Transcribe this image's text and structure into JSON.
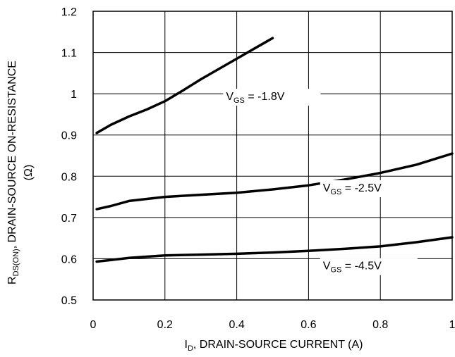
{
  "chart_data": {
    "type": "line",
    "title": "",
    "xlabel": {
      "main": "I",
      "sub": "D",
      "rest": ", DRAIN-SOURCE CURRENT (A)"
    },
    "ylabel": {
      "line1_main": "R",
      "line1_sub": "DS(ON)",
      "line1_rest": ", DRAIN-SOURCE ON-RESISTANCE",
      "line2": "(Ω)"
    },
    "xlim": [
      0,
      1
    ],
    "ylim": [
      0.5,
      1.2
    ],
    "x_ticks": [
      0,
      0.2,
      0.4,
      0.6,
      0.8,
      1
    ],
    "x_tick_labels": [
      "0",
      "0.2",
      "0.4",
      "0.6",
      "0.8",
      "1"
    ],
    "y_ticks": [
      0.5,
      0.6,
      0.7,
      0.8,
      0.9,
      1.0,
      1.1,
      1.2
    ],
    "y_tick_labels": [
      "0.5",
      "0.6",
      "0.7",
      "0.8",
      "0.9",
      "1",
      "1.1",
      "1.2"
    ],
    "grid": true,
    "legend": "none",
    "line_color": "#000000",
    "series": [
      {
        "label_main": "V",
        "label_sub": "GS",
        "label_rest": " = -1.8V",
        "label_at": {
          "x": 0.37,
          "y": 0.985
        },
        "x": [
          0.01,
          0.05,
          0.1,
          0.15,
          0.2,
          0.25,
          0.3,
          0.35,
          0.4,
          0.45,
          0.5
        ],
        "y": [
          0.905,
          0.925,
          0.945,
          0.962,
          0.982,
          1.008,
          1.035,
          1.06,
          1.085,
          1.11,
          1.135
        ]
      },
      {
        "label_main": "V",
        "label_sub": "GS",
        "label_rest": " = -2.5V",
        "label_at": {
          "x": 0.64,
          "y": 0.763
        },
        "x": [
          0.01,
          0.05,
          0.1,
          0.2,
          0.3,
          0.4,
          0.5,
          0.6,
          0.7,
          0.8,
          0.9,
          1.0
        ],
        "y": [
          0.72,
          0.728,
          0.74,
          0.75,
          0.755,
          0.76,
          0.768,
          0.778,
          0.792,
          0.808,
          0.828,
          0.855
        ]
      },
      {
        "label_main": "V",
        "label_sub": "GS",
        "label_rest": " = -4.5V",
        "label_at": {
          "x": 0.64,
          "y": 0.574
        },
        "x": [
          0.01,
          0.05,
          0.1,
          0.2,
          0.3,
          0.4,
          0.5,
          0.6,
          0.7,
          0.8,
          0.9,
          1.0
        ],
        "y": [
          0.593,
          0.597,
          0.602,
          0.608,
          0.61,
          0.612,
          0.615,
          0.619,
          0.624,
          0.63,
          0.64,
          0.652
        ]
      }
    ]
  }
}
